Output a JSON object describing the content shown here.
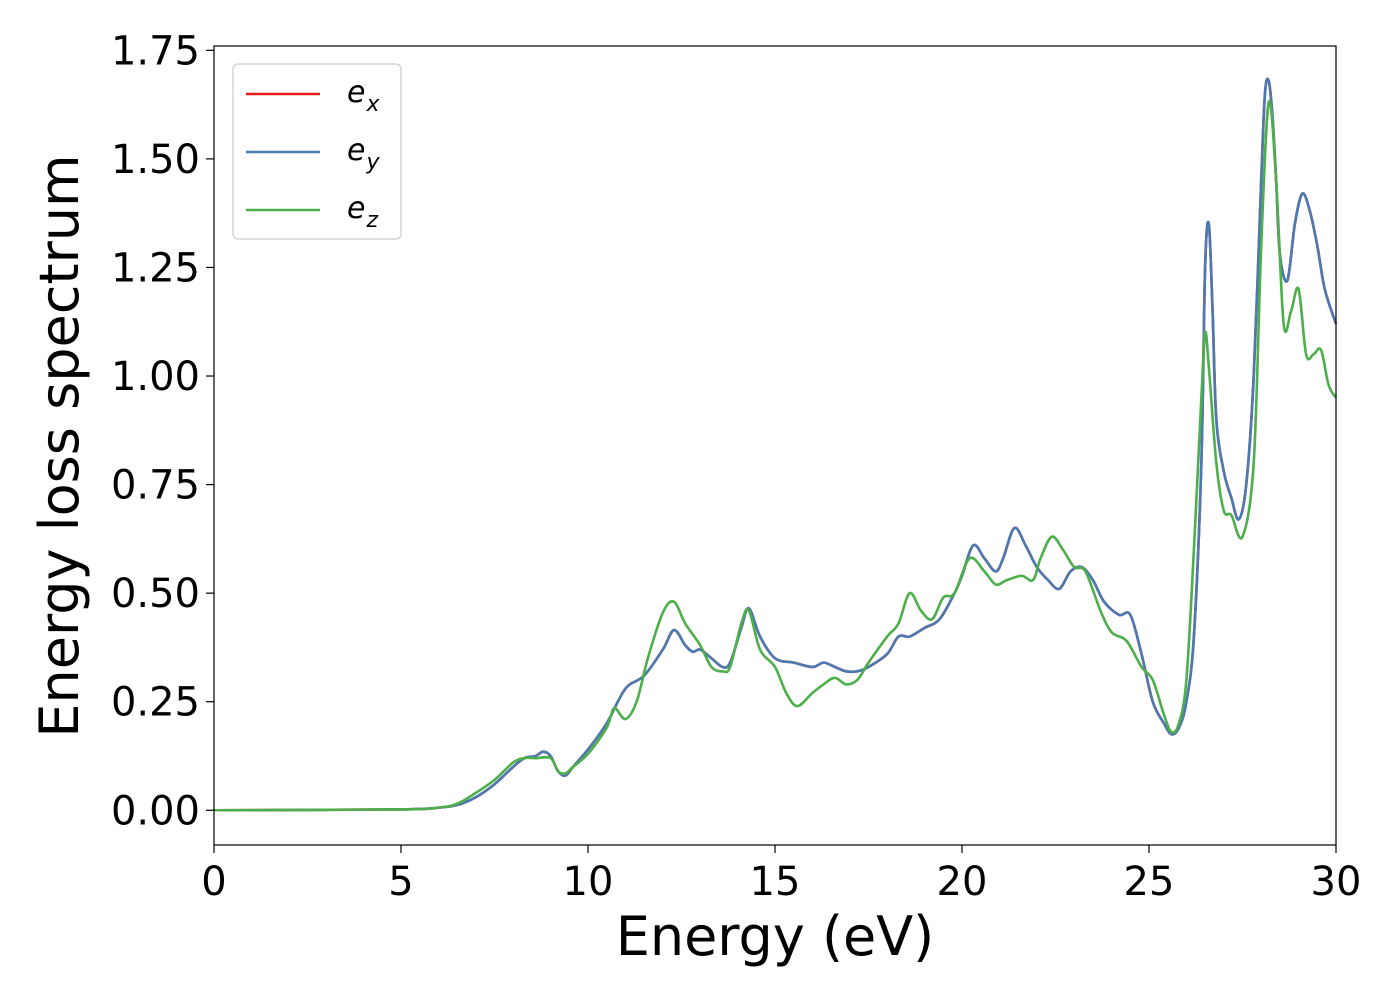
{
  "chart_data": {
    "type": "line",
    "xlabel": "Energy (eV)",
    "ylabel": "Energy loss spectrum",
    "xlim": [
      0,
      30
    ],
    "ylim": [
      -0.08,
      1.76
    ],
    "xticks": [
      0,
      5,
      10,
      15,
      20,
      25,
      30
    ],
    "xtick_labels": [
      "0",
      "5",
      "10",
      "15",
      "20",
      "25",
      "30"
    ],
    "yticks": [
      0.0,
      0.25,
      0.5,
      0.75,
      1.0,
      1.25,
      1.5,
      1.75
    ],
    "ytick_labels": [
      "0.00",
      "0.25",
      "0.50",
      "0.75",
      "1.00",
      "1.25",
      "1.50",
      "1.75"
    ],
    "grid": false,
    "legend_position": "top-left",
    "series": [
      {
        "name": "e_x",
        "label_base": "e",
        "label_sub": "x",
        "color": "#e41a1c",
        "x": [
          0,
          5,
          6,
          6.5,
          7,
          7.5,
          8,
          8.3,
          8.6,
          8.8,
          9,
          9.2,
          9.4,
          9.6,
          10,
          10.5,
          11,
          11.5,
          12,
          12.3,
          12.6,
          12.8,
          13,
          13.3,
          13.6,
          13.8,
          14.1,
          14.3,
          14.6,
          15,
          15.5,
          16,
          16.3,
          16.6,
          16.9,
          17.2,
          17.5,
          18,
          18.3,
          18.6,
          19,
          19.4,
          19.8,
          20,
          20.3,
          20.6,
          20.9,
          21.1,
          21.4,
          21.7,
          22,
          22.3,
          22.6,
          22.9,
          23.2,
          23.5,
          23.8,
          24.2,
          24.5,
          24.8,
          25.1,
          25.4,
          25.6,
          25.8,
          26,
          26.2,
          26.4,
          26.5,
          26.6,
          26.7,
          26.8,
          27,
          27.2,
          27.4,
          27.6,
          27.8,
          28,
          28.1,
          28.2,
          28.3,
          28.4,
          28.5,
          28.7,
          28.9,
          29.1,
          29.3,
          29.5,
          29.7,
          30
        ],
        "y": [
          0,
          0.002,
          0.006,
          0.012,
          0.03,
          0.06,
          0.1,
          0.12,
          0.125,
          0.135,
          0.125,
          0.09,
          0.08,
          0.1,
          0.14,
          0.2,
          0.28,
          0.31,
          0.37,
          0.415,
          0.38,
          0.365,
          0.37,
          0.35,
          0.33,
          0.34,
          0.42,
          0.465,
          0.4,
          0.35,
          0.34,
          0.33,
          0.34,
          0.33,
          0.32,
          0.32,
          0.33,
          0.36,
          0.4,
          0.4,
          0.42,
          0.44,
          0.5,
          0.54,
          0.61,
          0.58,
          0.55,
          0.58,
          0.65,
          0.61,
          0.56,
          0.53,
          0.51,
          0.55,
          0.56,
          0.53,
          0.48,
          0.45,
          0.45,
          0.36,
          0.25,
          0.2,
          0.175,
          0.19,
          0.25,
          0.4,
          0.8,
          1.25,
          1.35,
          1.15,
          0.9,
          0.78,
          0.72,
          0.67,
          0.75,
          1.0,
          1.45,
          1.65,
          1.68,
          1.6,
          1.45,
          1.28,
          1.22,
          1.35,
          1.42,
          1.38,
          1.3,
          1.2,
          1.12
        ]
      },
      {
        "name": "e_y",
        "label_base": "e",
        "label_sub": "y",
        "color": "#4a7ab2",
        "x": [
          0,
          5,
          6,
          6.5,
          7,
          7.5,
          8,
          8.3,
          8.6,
          8.8,
          9,
          9.2,
          9.4,
          9.6,
          10,
          10.5,
          11,
          11.5,
          12,
          12.3,
          12.6,
          12.8,
          13,
          13.3,
          13.6,
          13.8,
          14.1,
          14.3,
          14.6,
          15,
          15.5,
          16,
          16.3,
          16.6,
          16.9,
          17.2,
          17.5,
          18,
          18.3,
          18.6,
          19,
          19.4,
          19.8,
          20,
          20.3,
          20.6,
          20.9,
          21.1,
          21.4,
          21.7,
          22,
          22.3,
          22.6,
          22.9,
          23.2,
          23.5,
          23.8,
          24.2,
          24.5,
          24.8,
          25.1,
          25.4,
          25.6,
          25.8,
          26,
          26.2,
          26.4,
          26.5,
          26.6,
          26.7,
          26.8,
          27,
          27.2,
          27.4,
          27.6,
          27.8,
          28,
          28.1,
          28.2,
          28.3,
          28.4,
          28.5,
          28.7,
          28.9,
          29.1,
          29.3,
          29.5,
          29.7,
          30
        ],
        "y": [
          0,
          0.002,
          0.006,
          0.012,
          0.03,
          0.06,
          0.1,
          0.12,
          0.125,
          0.135,
          0.125,
          0.09,
          0.08,
          0.1,
          0.14,
          0.2,
          0.28,
          0.31,
          0.37,
          0.415,
          0.38,
          0.365,
          0.37,
          0.35,
          0.33,
          0.34,
          0.42,
          0.465,
          0.4,
          0.35,
          0.34,
          0.33,
          0.34,
          0.33,
          0.32,
          0.32,
          0.33,
          0.36,
          0.4,
          0.4,
          0.42,
          0.44,
          0.5,
          0.54,
          0.61,
          0.58,
          0.55,
          0.58,
          0.65,
          0.61,
          0.56,
          0.53,
          0.51,
          0.55,
          0.56,
          0.53,
          0.48,
          0.45,
          0.45,
          0.36,
          0.25,
          0.2,
          0.175,
          0.19,
          0.25,
          0.4,
          0.8,
          1.25,
          1.35,
          1.15,
          0.9,
          0.78,
          0.72,
          0.67,
          0.75,
          1.0,
          1.45,
          1.65,
          1.68,
          1.6,
          1.45,
          1.28,
          1.22,
          1.35,
          1.42,
          1.38,
          1.3,
          1.2,
          1.12
        ]
      },
      {
        "name": "e_z",
        "label_base": "e",
        "label_sub": "z",
        "color": "#4daf4a",
        "x": [
          0,
          5,
          6,
          6.5,
          7,
          7.5,
          8,
          8.3,
          8.6,
          9,
          9.2,
          9.4,
          9.6,
          10,
          10.5,
          10.7,
          11,
          11.3,
          11.6,
          12,
          12.3,
          12.6,
          13,
          13.3,
          13.6,
          13.8,
          14.1,
          14.3,
          14.6,
          15,
          15.3,
          15.6,
          16,
          16.3,
          16.6,
          16.9,
          17.2,
          17.5,
          18,
          18.3,
          18.6,
          18.9,
          19.2,
          19.5,
          19.8,
          20.2,
          20.6,
          20.9,
          21.2,
          21.6,
          21.9,
          22.1,
          22.4,
          22.7,
          23,
          23.3,
          23.7,
          24,
          24.4,
          24.8,
          25.1,
          25.4,
          25.6,
          25.8,
          26,
          26.2,
          26.4,
          26.5,
          26.6,
          26.8,
          27,
          27.2,
          27.5,
          27.8,
          28,
          28.2,
          28.4,
          28.6,
          28.8,
          29,
          29.2,
          29.4,
          29.6,
          29.8,
          30
        ],
        "y": [
          0,
          0.002,
          0.006,
          0.015,
          0.04,
          0.07,
          0.11,
          0.12,
          0.12,
          0.12,
          0.09,
          0.085,
          0.1,
          0.13,
          0.19,
          0.235,
          0.21,
          0.25,
          0.35,
          0.455,
          0.48,
          0.43,
          0.38,
          0.33,
          0.32,
          0.33,
          0.43,
          0.46,
          0.37,
          0.33,
          0.27,
          0.24,
          0.27,
          0.29,
          0.305,
          0.29,
          0.3,
          0.34,
          0.4,
          0.43,
          0.5,
          0.46,
          0.44,
          0.49,
          0.5,
          0.58,
          0.55,
          0.52,
          0.53,
          0.54,
          0.53,
          0.58,
          0.63,
          0.6,
          0.56,
          0.55,
          0.46,
          0.41,
          0.39,
          0.33,
          0.3,
          0.22,
          0.18,
          0.2,
          0.3,
          0.6,
          0.95,
          1.1,
          1.02,
          0.8,
          0.69,
          0.68,
          0.63,
          0.8,
          1.3,
          1.63,
          1.45,
          1.12,
          1.15,
          1.2,
          1.05,
          1.05,
          1.06,
          0.98,
          0.95
        ]
      }
    ]
  }
}
